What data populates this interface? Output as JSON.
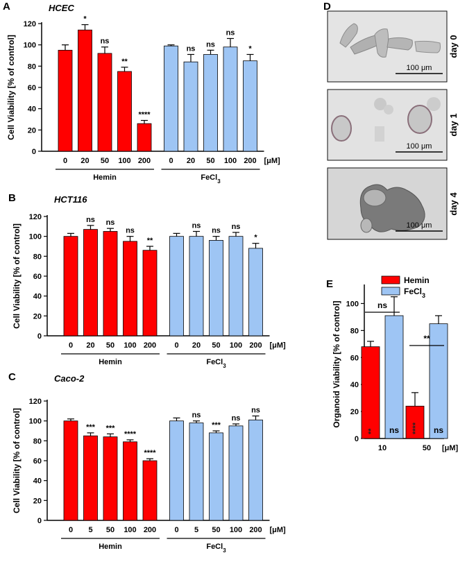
{
  "colors": {
    "hemin": "#ff0000",
    "fecl3": "#9ec5f4",
    "axis": "#000000"
  },
  "chart_data": [
    {
      "type": "bar",
      "panel": "A",
      "title": "HCEC",
      "ylabel": "Cell Viability [% of control]",
      "ylim": [
        0,
        120
      ],
      "yticks": [
        "0",
        "20",
        "40",
        "60",
        "80",
        "100",
        "120"
      ],
      "categories": [
        "0",
        "20",
        "50",
        "100",
        "200",
        "0",
        "20",
        "50",
        "100",
        "200"
      ],
      "unit": "[μM]",
      "groups": [
        {
          "name": "Hemin",
          "sub": ""
        },
        {
          "name": "FeCl",
          "sub": "3"
        }
      ],
      "values": [
        95,
        114,
        92,
        75,
        26,
        99,
        84,
        91,
        98,
        85
      ],
      "errors": [
        5,
        5,
        6,
        4,
        3,
        1,
        7,
        4,
        8,
        6
      ],
      "series_of_bar": [
        0,
        0,
        0,
        0,
        0,
        1,
        1,
        1,
        1,
        1
      ],
      "labels": [
        "",
        "*",
        "ns",
        "**",
        "****",
        "",
        "ns",
        "ns",
        "ns",
        "*"
      ]
    },
    {
      "type": "bar",
      "panel": "B",
      "title": "HCT116",
      "ylabel": "Cell Viability [% of control]",
      "ylim": [
        0,
        120
      ],
      "yticks": [
        "0",
        "20",
        "40",
        "60",
        "80",
        "100",
        "120"
      ],
      "categories": [
        "0",
        "20",
        "50",
        "100",
        "200",
        "0",
        "20",
        "50",
        "100",
        "200"
      ],
      "unit": "[μM]",
      "groups": [
        {
          "name": "Hemin",
          "sub": ""
        },
        {
          "name": "FeCl",
          "sub": "3"
        }
      ],
      "values": [
        100,
        107,
        105,
        95,
        86,
        100,
        100,
        96,
        100,
        88
      ],
      "errors": [
        3,
        4,
        3,
        5,
        4,
        3,
        5,
        4,
        4,
        5
      ],
      "series_of_bar": [
        0,
        0,
        0,
        0,
        0,
        1,
        1,
        1,
        1,
        1
      ],
      "labels": [
        "",
        "ns",
        "ns",
        "ns",
        "**",
        "",
        "ns",
        "ns",
        "ns",
        "*"
      ]
    },
    {
      "type": "bar",
      "panel": "C",
      "title": "Caco-2",
      "ylabel": "Cell Viability [% of control]",
      "ylim": [
        0,
        120
      ],
      "yticks": [
        "0",
        "20",
        "40",
        "60",
        "80",
        "100",
        "120"
      ],
      "categories": [
        "0",
        "5",
        "50",
        "100",
        "200",
        "0",
        "5",
        "50",
        "100",
        "200"
      ],
      "unit": "[μM]",
      "groups": [
        {
          "name": "Hemin",
          "sub": ""
        },
        {
          "name": "FeCl",
          "sub": "3"
        }
      ],
      "values": [
        100,
        85,
        84,
        79,
        60,
        100,
        98,
        88,
        95,
        101
      ],
      "errors": [
        2,
        3,
        3,
        2,
        2,
        3,
        2,
        2,
        2,
        4
      ],
      "series_of_bar": [
        0,
        0,
        0,
        0,
        0,
        1,
        1,
        1,
        1,
        1
      ],
      "labels": [
        "",
        "***",
        "***",
        "****",
        "****",
        "",
        "ns",
        "***",
        "ns",
        "ns"
      ]
    },
    {
      "type": "bar",
      "panel": "E",
      "title": "",
      "ylabel": "Organoid Viability [% of control]",
      "ylim": [
        0,
        110
      ],
      "yticks": [
        "0",
        "20",
        "40",
        "60",
        "80",
        "100"
      ],
      "categories": [
        "10",
        "50"
      ],
      "unit": "[μM]",
      "legend": [
        {
          "name": "Hemin",
          "sub": ""
        },
        {
          "name": "FeCl",
          "sub": "3"
        }
      ],
      "series": [
        {
          "name": "Hemin",
          "values": [
            68,
            24
          ],
          "errors": [
            4,
            10
          ],
          "inner_labels": [
            "**",
            "****"
          ]
        },
        {
          "name": "FeCl3",
          "values": [
            91,
            85
          ],
          "errors": [
            14,
            6
          ],
          "inner_labels": [
            "ns",
            "ns"
          ]
        }
      ],
      "comparisons": [
        "ns",
        "**"
      ]
    }
  ],
  "panel_d": {
    "label": "D",
    "images": [
      {
        "day": "day 0",
        "scale": "100 μm"
      },
      {
        "day": "day 1",
        "scale": "100 μm"
      },
      {
        "day": "day 4",
        "scale": "100 μm"
      }
    ]
  }
}
